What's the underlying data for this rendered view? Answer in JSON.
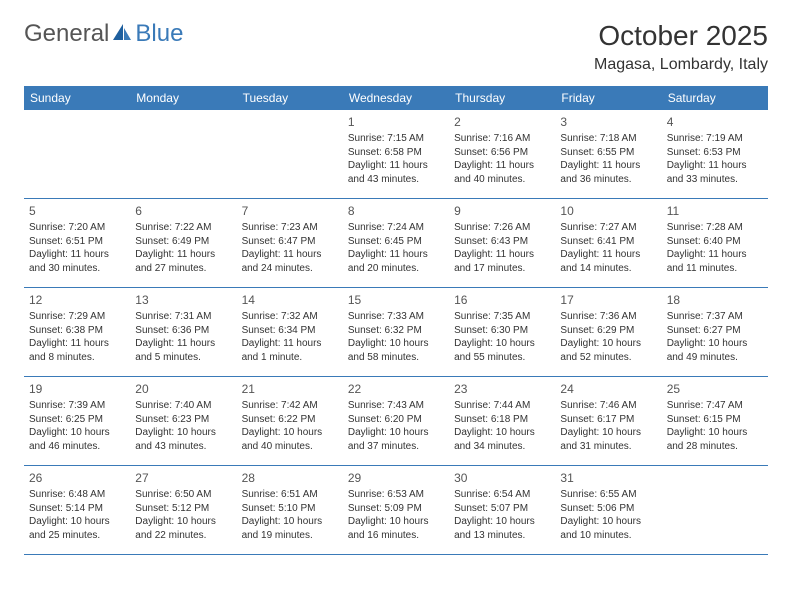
{
  "logo": {
    "general": "General",
    "blue": "Blue"
  },
  "title": "October 2025",
  "location": "Magasa, Lombardy, Italy",
  "colors": {
    "header_bg": "#3a7ab8",
    "header_text": "#ffffff",
    "body_text": "#333333",
    "logo_gray": "#555555",
    "logo_blue": "#3a7ab8",
    "border": "#3a7ab8",
    "background": "#ffffff"
  },
  "dayNames": [
    "Sunday",
    "Monday",
    "Tuesday",
    "Wednesday",
    "Thursday",
    "Friday",
    "Saturday"
  ],
  "weeks": [
    [
      {
        "n": "",
        "sr": "",
        "ss": "",
        "dl": ""
      },
      {
        "n": "",
        "sr": "",
        "ss": "",
        "dl": ""
      },
      {
        "n": "",
        "sr": "",
        "ss": "",
        "dl": ""
      },
      {
        "n": "1",
        "sr": "Sunrise: 7:15 AM",
        "ss": "Sunset: 6:58 PM",
        "dl": "Daylight: 11 hours and 43 minutes."
      },
      {
        "n": "2",
        "sr": "Sunrise: 7:16 AM",
        "ss": "Sunset: 6:56 PM",
        "dl": "Daylight: 11 hours and 40 minutes."
      },
      {
        "n": "3",
        "sr": "Sunrise: 7:18 AM",
        "ss": "Sunset: 6:55 PM",
        "dl": "Daylight: 11 hours and 36 minutes."
      },
      {
        "n": "4",
        "sr": "Sunrise: 7:19 AM",
        "ss": "Sunset: 6:53 PM",
        "dl": "Daylight: 11 hours and 33 minutes."
      }
    ],
    [
      {
        "n": "5",
        "sr": "Sunrise: 7:20 AM",
        "ss": "Sunset: 6:51 PM",
        "dl": "Daylight: 11 hours and 30 minutes."
      },
      {
        "n": "6",
        "sr": "Sunrise: 7:22 AM",
        "ss": "Sunset: 6:49 PM",
        "dl": "Daylight: 11 hours and 27 minutes."
      },
      {
        "n": "7",
        "sr": "Sunrise: 7:23 AM",
        "ss": "Sunset: 6:47 PM",
        "dl": "Daylight: 11 hours and 24 minutes."
      },
      {
        "n": "8",
        "sr": "Sunrise: 7:24 AM",
        "ss": "Sunset: 6:45 PM",
        "dl": "Daylight: 11 hours and 20 minutes."
      },
      {
        "n": "9",
        "sr": "Sunrise: 7:26 AM",
        "ss": "Sunset: 6:43 PM",
        "dl": "Daylight: 11 hours and 17 minutes."
      },
      {
        "n": "10",
        "sr": "Sunrise: 7:27 AM",
        "ss": "Sunset: 6:41 PM",
        "dl": "Daylight: 11 hours and 14 minutes."
      },
      {
        "n": "11",
        "sr": "Sunrise: 7:28 AM",
        "ss": "Sunset: 6:40 PM",
        "dl": "Daylight: 11 hours and 11 minutes."
      }
    ],
    [
      {
        "n": "12",
        "sr": "Sunrise: 7:29 AM",
        "ss": "Sunset: 6:38 PM",
        "dl": "Daylight: 11 hours and 8 minutes."
      },
      {
        "n": "13",
        "sr": "Sunrise: 7:31 AM",
        "ss": "Sunset: 6:36 PM",
        "dl": "Daylight: 11 hours and 5 minutes."
      },
      {
        "n": "14",
        "sr": "Sunrise: 7:32 AM",
        "ss": "Sunset: 6:34 PM",
        "dl": "Daylight: 11 hours and 1 minute."
      },
      {
        "n": "15",
        "sr": "Sunrise: 7:33 AM",
        "ss": "Sunset: 6:32 PM",
        "dl": "Daylight: 10 hours and 58 minutes."
      },
      {
        "n": "16",
        "sr": "Sunrise: 7:35 AM",
        "ss": "Sunset: 6:30 PM",
        "dl": "Daylight: 10 hours and 55 minutes."
      },
      {
        "n": "17",
        "sr": "Sunrise: 7:36 AM",
        "ss": "Sunset: 6:29 PM",
        "dl": "Daylight: 10 hours and 52 minutes."
      },
      {
        "n": "18",
        "sr": "Sunrise: 7:37 AM",
        "ss": "Sunset: 6:27 PM",
        "dl": "Daylight: 10 hours and 49 minutes."
      }
    ],
    [
      {
        "n": "19",
        "sr": "Sunrise: 7:39 AM",
        "ss": "Sunset: 6:25 PM",
        "dl": "Daylight: 10 hours and 46 minutes."
      },
      {
        "n": "20",
        "sr": "Sunrise: 7:40 AM",
        "ss": "Sunset: 6:23 PM",
        "dl": "Daylight: 10 hours and 43 minutes."
      },
      {
        "n": "21",
        "sr": "Sunrise: 7:42 AM",
        "ss": "Sunset: 6:22 PM",
        "dl": "Daylight: 10 hours and 40 minutes."
      },
      {
        "n": "22",
        "sr": "Sunrise: 7:43 AM",
        "ss": "Sunset: 6:20 PM",
        "dl": "Daylight: 10 hours and 37 minutes."
      },
      {
        "n": "23",
        "sr": "Sunrise: 7:44 AM",
        "ss": "Sunset: 6:18 PM",
        "dl": "Daylight: 10 hours and 34 minutes."
      },
      {
        "n": "24",
        "sr": "Sunrise: 7:46 AM",
        "ss": "Sunset: 6:17 PM",
        "dl": "Daylight: 10 hours and 31 minutes."
      },
      {
        "n": "25",
        "sr": "Sunrise: 7:47 AM",
        "ss": "Sunset: 6:15 PM",
        "dl": "Daylight: 10 hours and 28 minutes."
      }
    ],
    [
      {
        "n": "26",
        "sr": "Sunrise: 6:48 AM",
        "ss": "Sunset: 5:14 PM",
        "dl": "Daylight: 10 hours and 25 minutes."
      },
      {
        "n": "27",
        "sr": "Sunrise: 6:50 AM",
        "ss": "Sunset: 5:12 PM",
        "dl": "Daylight: 10 hours and 22 minutes."
      },
      {
        "n": "28",
        "sr": "Sunrise: 6:51 AM",
        "ss": "Sunset: 5:10 PM",
        "dl": "Daylight: 10 hours and 19 minutes."
      },
      {
        "n": "29",
        "sr": "Sunrise: 6:53 AM",
        "ss": "Sunset: 5:09 PM",
        "dl": "Daylight: 10 hours and 16 minutes."
      },
      {
        "n": "30",
        "sr": "Sunrise: 6:54 AM",
        "ss": "Sunset: 5:07 PM",
        "dl": "Daylight: 10 hours and 13 minutes."
      },
      {
        "n": "31",
        "sr": "Sunrise: 6:55 AM",
        "ss": "Sunset: 5:06 PM",
        "dl": "Daylight: 10 hours and 10 minutes."
      },
      {
        "n": "",
        "sr": "",
        "ss": "",
        "dl": ""
      }
    ]
  ]
}
